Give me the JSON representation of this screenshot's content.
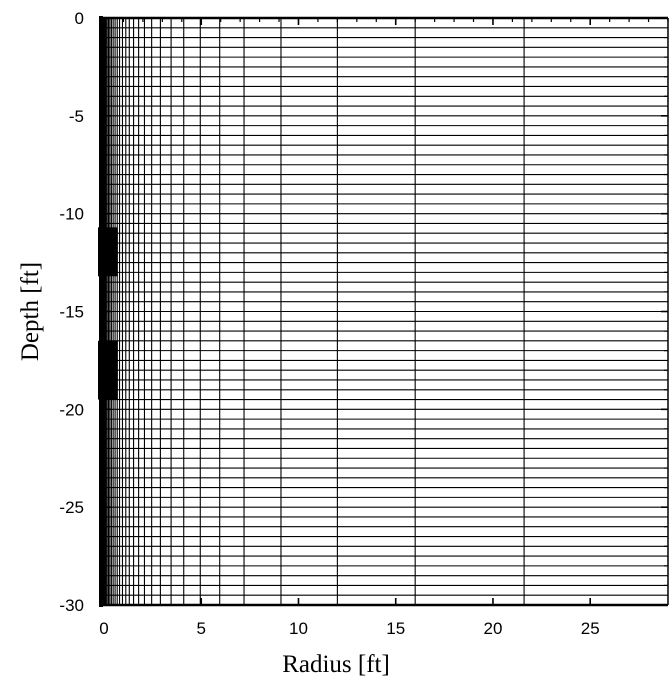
{
  "chart_data": {
    "type": "mesh",
    "xlabel": "Radius [ft]",
    "ylabel": "Depth [ft]",
    "xlim": [
      0,
      29
    ],
    "ylim": [
      -30,
      0
    ],
    "xticks": [
      0,
      5,
      10,
      15,
      20,
      25
    ],
    "yticks": [
      0,
      -5,
      -10,
      -15,
      -20,
      -25,
      -30
    ],
    "x_tick_labels": [
      "0",
      "5",
      "10",
      "15",
      "20",
      "25"
    ],
    "y_tick_labels": [
      "0",
      "-5",
      "-10",
      "-15",
      "-20",
      "-25",
      "-30"
    ],
    "grid_x": [
      0.05,
      0.1,
      0.16,
      0.23,
      0.3,
      0.38,
      0.47,
      0.57,
      0.68,
      0.8,
      0.95,
      1.12,
      1.3,
      1.52,
      1.78,
      2.08,
      2.45,
      2.9,
      3.45,
      4.1,
      4.95,
      5.95,
      7.2,
      9.1,
      12.0,
      16.0,
      21.6
    ],
    "grid_y_spacing": 0.5,
    "wells": [
      {
        "x_from": 0,
        "x_to": 0.4,
        "y_from": -10.7,
        "y_to": -13.2
      },
      {
        "x_from": 0,
        "x_to": 0.4,
        "y_from": -16.5,
        "y_to": -19.5
      }
    ],
    "grid": true,
    "legend": "none",
    "colors": {
      "line": "#000000",
      "background": "#ffffff"
    }
  }
}
